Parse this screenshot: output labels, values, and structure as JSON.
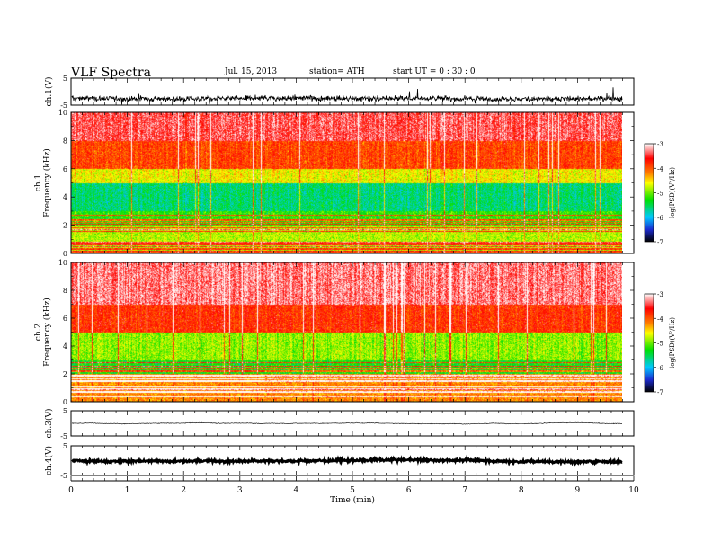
{
  "header": {
    "title": "VLF  Spectra",
    "date": "Jul.  15, 2013",
    "station": "station= ATH",
    "start": "start  UT  =   0 : 30 : 0"
  },
  "colors": {
    "spectrum_scale": [
      "#000000",
      "#1c2bd0",
      "#00c8ff",
      "#00e000",
      "#ffff00",
      "#ff8000",
      "#ff0000",
      "#ffffff"
    ],
    "trace": "#000000"
  },
  "chart_data": [
    {
      "type": "line",
      "panel": "ch1-waveform",
      "ylabel": "ch.1(V)",
      "yticks": [
        "5",
        "-5"
      ],
      "ylim": [
        -5,
        5
      ],
      "xlim": [
        0,
        10
      ],
      "data_end_min": 9.8,
      "series": [
        {
          "approx_level": -2.5,
          "approx_noise_amplitude": 1.2
        }
      ]
    },
    {
      "type": "heatmap",
      "panel": "ch1-spectrogram",
      "ylabel": "ch.1\nFrequency  (kHz)",
      "yticks": [
        "0",
        "2",
        "4",
        "6",
        "8",
        "10"
      ],
      "ylim": [
        0,
        10
      ],
      "xlim": [
        0,
        10
      ],
      "data_end_min": 9.8,
      "colorbar": {
        "label": "log(PSD)(V²/Hz)",
        "ticks": [
          "-3",
          "-4",
          "-5",
          "-6",
          "-7"
        ],
        "range": [
          -7,
          -3
        ]
      },
      "band_levels_log_psd": [
        {
          "freq_khz": [
            8,
            10
          ],
          "level": -3.4
        },
        {
          "freq_khz": [
            6,
            8
          ],
          "level": -3.9
        },
        {
          "freq_khz": [
            5,
            6
          ],
          "level": -4.6
        },
        {
          "freq_khz": [
            3,
            5
          ],
          "level": -5.6
        },
        {
          "freq_khz": [
            2,
            3
          ],
          "level": -5.2
        },
        {
          "freq_khz": [
            0,
            2
          ],
          "level": -4.8
        }
      ]
    },
    {
      "type": "heatmap",
      "panel": "ch2-spectrogram",
      "ylabel": "ch.2\nFrequency  (kHz)",
      "yticks": [
        "0",
        "2",
        "4",
        "6",
        "8",
        "10"
      ],
      "ylim": [
        0,
        10
      ],
      "xlim": [
        0,
        10
      ],
      "data_end_min": 9.8,
      "colorbar": {
        "label": "log(PSD)(V²/Hz)",
        "ticks": [
          "-3",
          "-4",
          "-5",
          "-6",
          "-7"
        ],
        "range": [
          -7,
          -3
        ]
      },
      "band_levels_log_psd": [
        {
          "freq_khz": [
            7,
            10
          ],
          "level": -3.3
        },
        {
          "freq_khz": [
            5,
            7
          ],
          "level": -3.8
        },
        {
          "freq_khz": [
            3,
            5
          ],
          "level": -4.9
        },
        {
          "freq_khz": [
            2,
            3
          ],
          "level": -5.3
        },
        {
          "freq_khz": [
            0,
            2
          ],
          "level": -4.2
        }
      ]
    },
    {
      "type": "line",
      "panel": "ch3-waveform",
      "ylabel": "ch.3(V)",
      "yticks": [
        "5",
        "-5"
      ],
      "ylim": [
        -5,
        5
      ],
      "xlim": [
        0,
        10
      ],
      "data_end_min": 9.8,
      "series": [
        {
          "approx_level": 0.0,
          "approx_noise_amplitude": 0.15
        }
      ]
    },
    {
      "type": "line",
      "panel": "ch4-waveform",
      "ylabel": "ch.4(V)",
      "yticks": [
        "5",
        "-5"
      ],
      "ylim": [
        -5,
        5
      ],
      "xlim": [
        0,
        10
      ],
      "data_end_min": 9.8,
      "series": [
        {
          "approx_level": 0.0,
          "approx_noise_amplitude": 0.5
        }
      ]
    }
  ],
  "xaxis": {
    "label": "Time  (min)",
    "ticks": [
      "0",
      "1",
      "2",
      "3",
      "4",
      "5",
      "6",
      "7",
      "8",
      "9",
      "10"
    ]
  }
}
